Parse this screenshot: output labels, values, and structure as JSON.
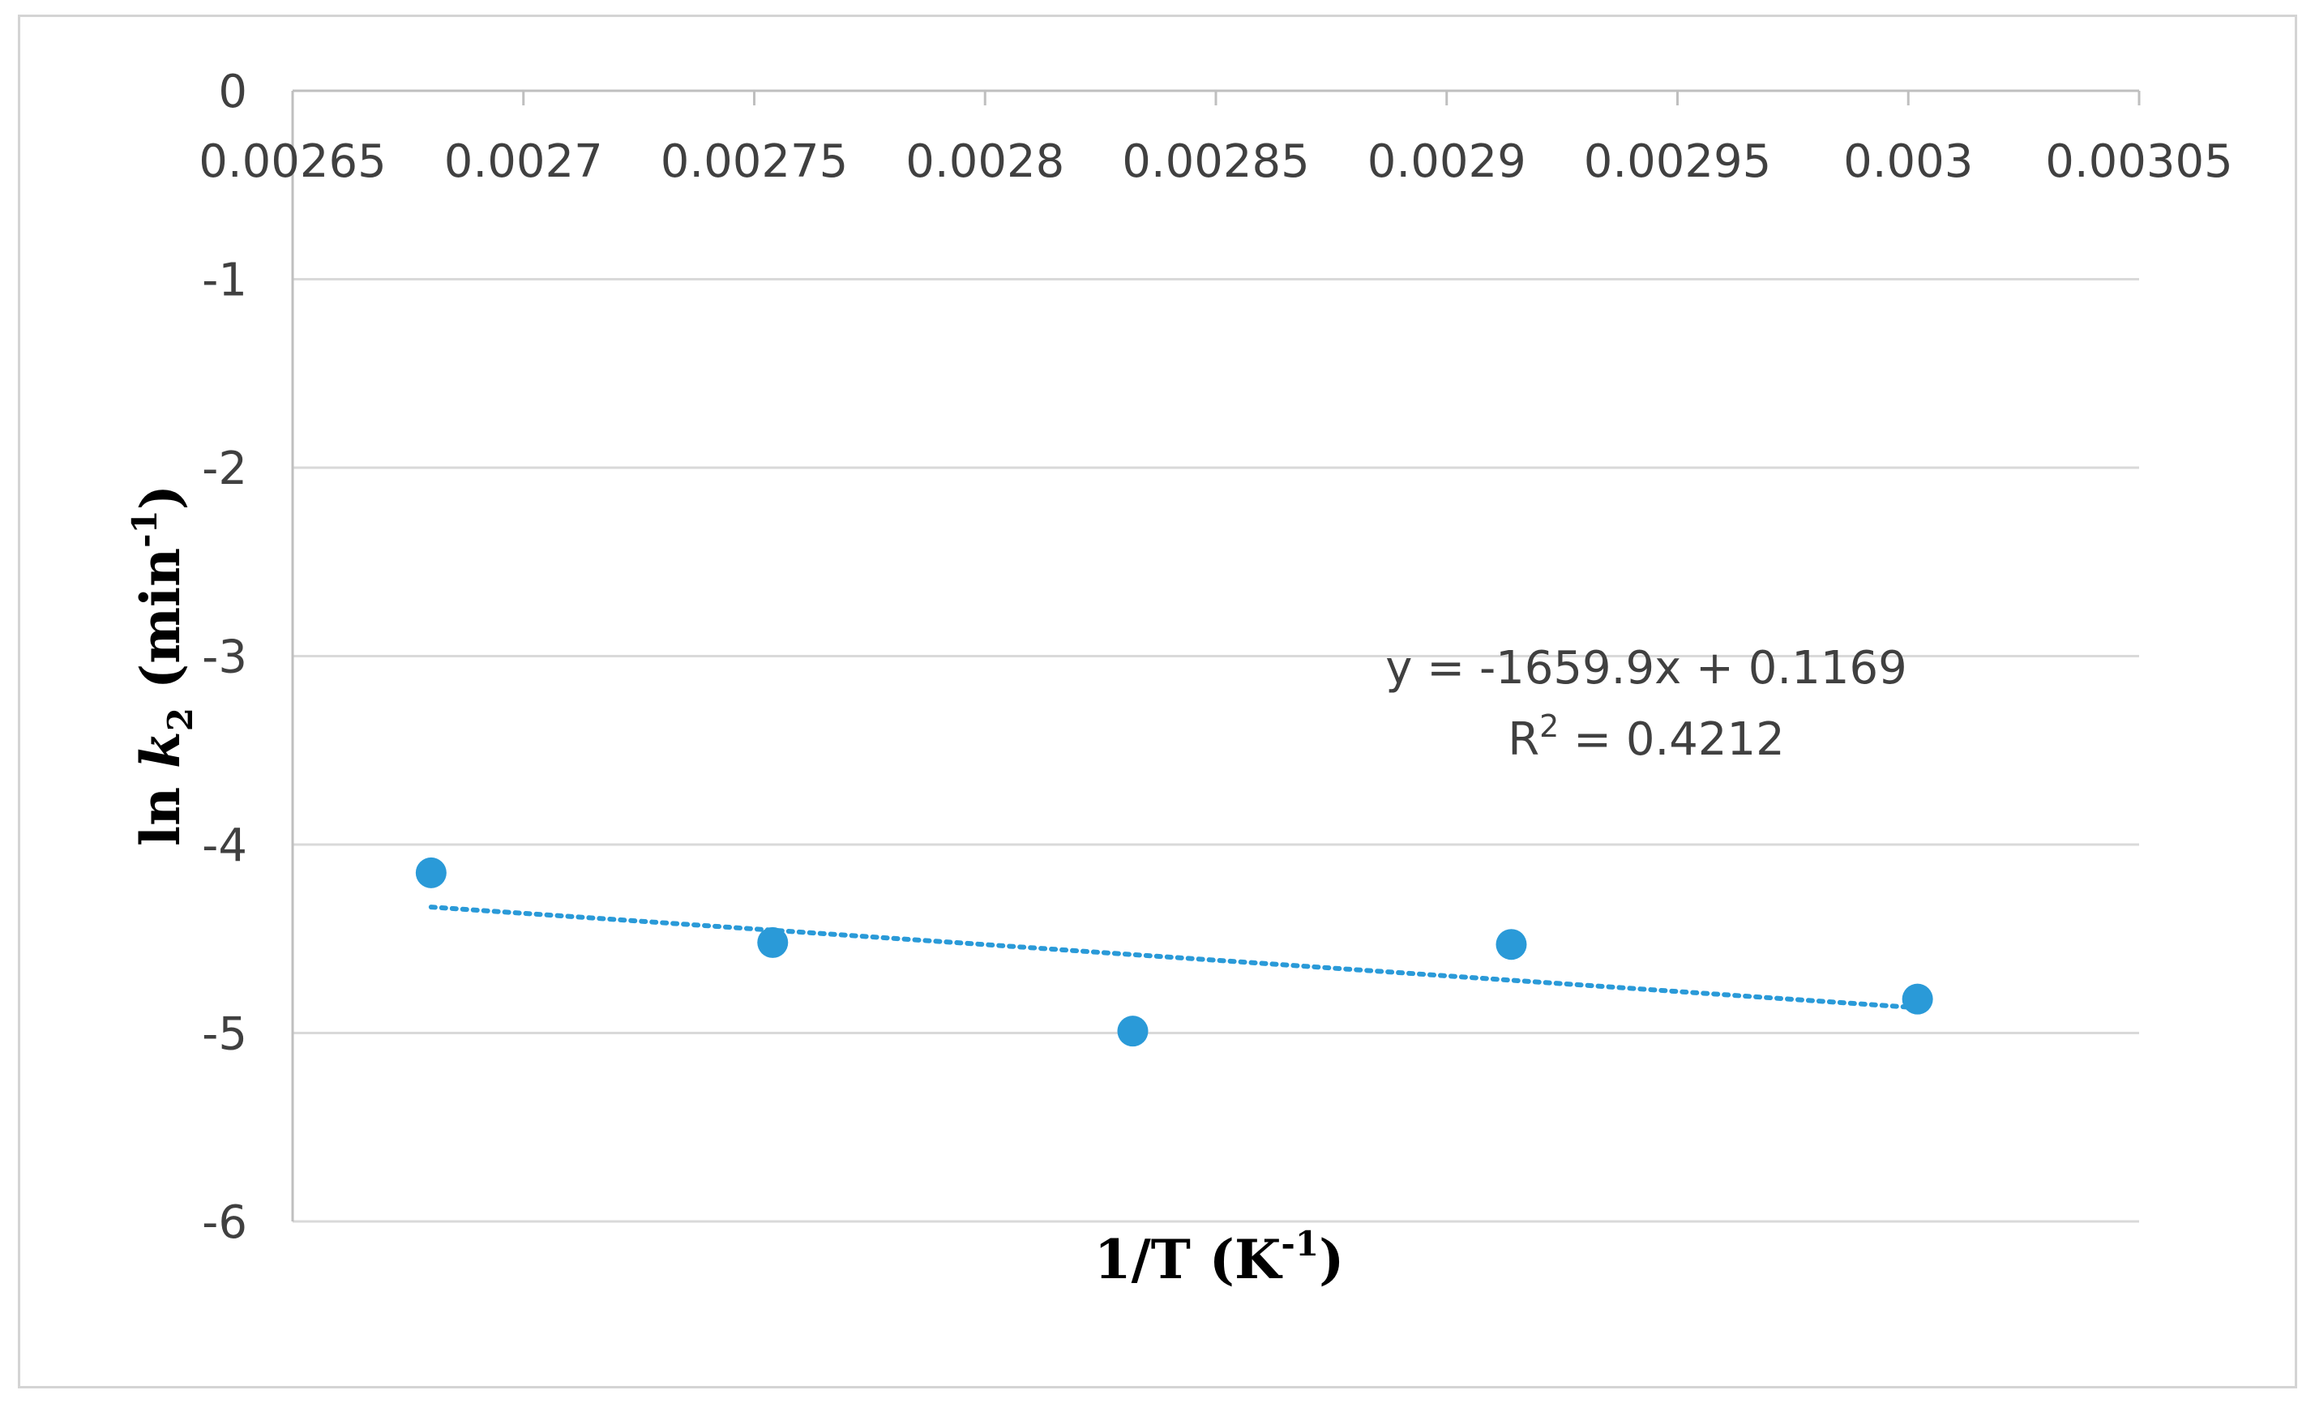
{
  "chart_data": {
    "type": "scatter",
    "title": "",
    "xlabel_main": "1/T (K",
    "xlabel_sup": "-1",
    "xlabel_close": ")",
    "ylabel_prefix": "ln ",
    "ylabel_var": "k",
    "ylabel_sub": "2",
    "ylabel_unit": " (min",
    "ylabel_sup": "-1",
    "ylabel_close": ")",
    "xlim": [
      0.00265,
      0.00305
    ],
    "ylim": [
      -6,
      0
    ],
    "x_ticks": [
      0.00265,
      0.0027,
      0.00275,
      0.0028,
      0.00285,
      0.0029,
      0.00295,
      0.003,
      0.00305
    ],
    "x_tick_labels": [
      "0.00265",
      "0.0027",
      "0.00275",
      "0.0028",
      "0.00285",
      "0.0029",
      "0.00295",
      "0.003",
      "0.00305"
    ],
    "y_ticks": [
      0,
      -1,
      -2,
      -3,
      -4,
      -5,
      -6
    ],
    "y_tick_labels": [
      "0",
      "-1",
      "-2",
      "-3",
      "-4",
      "-5",
      "-6"
    ],
    "grid": true,
    "x_axis_position": "top (at y = 0)",
    "series": [
      {
        "name": "ln k2",
        "color": "#2a9ad8",
        "x": [
          0.00268,
          0.002754,
          0.002832,
          0.002914,
          0.003002
        ],
        "y": [
          -4.15,
          -4.52,
          -4.99,
          -4.53,
          -4.82
        ]
      }
    ],
    "trendline": {
      "type": "linear",
      "style": "dotted",
      "color": "#2a9ad8",
      "slope": -1659.9,
      "intercept": 0.1169,
      "x_range": [
        0.00268,
        0.003002
      ],
      "equation_label": "y = -1659.9x + 0.1169",
      "r2_prefix": "R",
      "r2_sup": "2",
      "r2_suffix": " = 0.4212"
    }
  }
}
